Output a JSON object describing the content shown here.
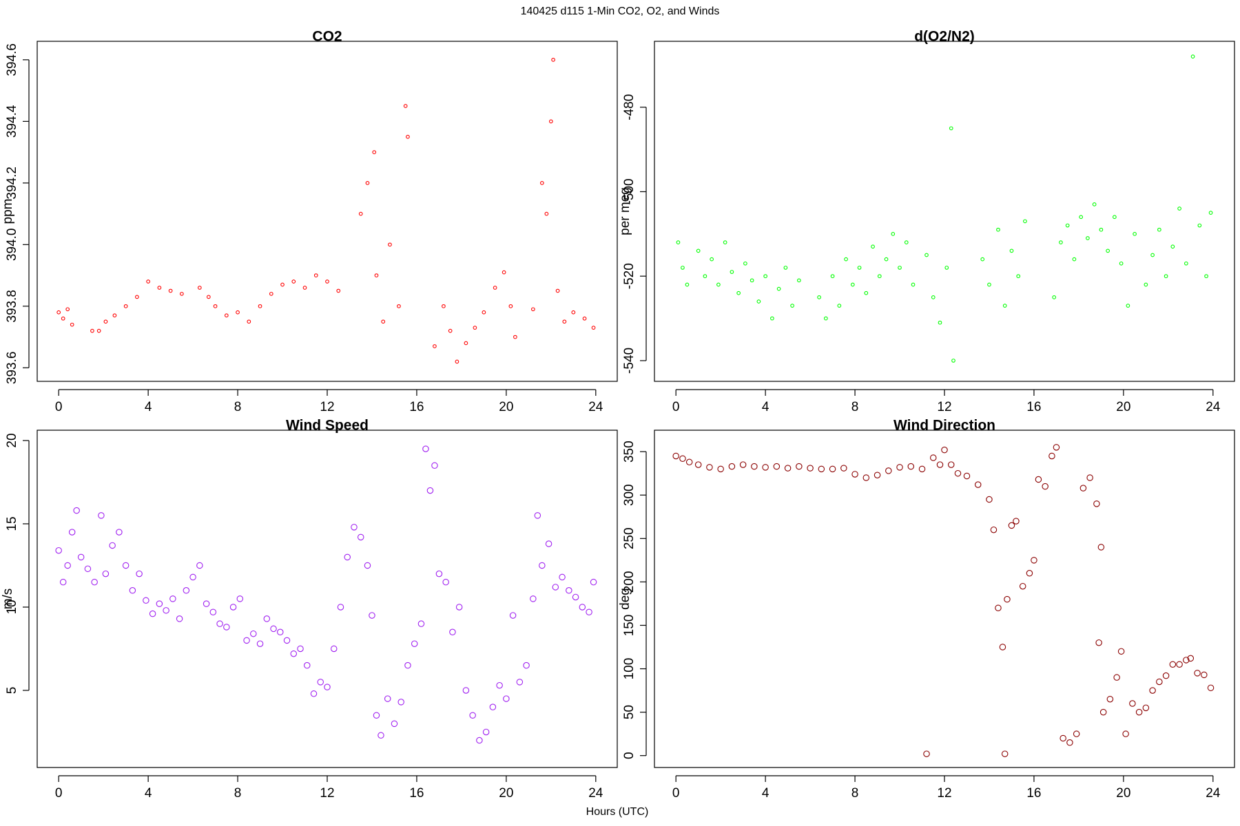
{
  "title": "140425   d115   1-Min CO2, O2, and Winds",
  "xlabel": "Hours (UTC)",
  "chart_data": [
    {
      "type": "scatter",
      "title": "CO2",
      "ylabel": "ppm",
      "color": "#ff0000",
      "xlim": [
        -0.96,
        24.96
      ],
      "xticks": [
        0,
        4,
        8,
        12,
        16,
        20,
        24
      ],
      "ylim": [
        393.556,
        394.66
      ],
      "yticks": [
        393.6,
        393.8,
        {
          "value": 394,
          "label": "394.0"
        },
        394.2,
        394.4,
        394.6
      ],
      "x": [
        0.0,
        0.2,
        0.4,
        0.6,
        1.5,
        1.8,
        2.1,
        2.5,
        3.0,
        3.5,
        4.0,
        4.5,
        5.0,
        5.5,
        6.3,
        6.7,
        7.0,
        7.5,
        8.0,
        8.5,
        9.0,
        9.5,
        10.0,
        10.5,
        11.0,
        11.5,
        12.0,
        12.5,
        13.5,
        13.8,
        14.1,
        14.2,
        14.5,
        14.8,
        15.2,
        15.5,
        15.6,
        16.8,
        17.2,
        17.5,
        17.8,
        18.2,
        18.6,
        19.0,
        19.5,
        19.9,
        20.2,
        20.4,
        21.2,
        21.6,
        21.8,
        22.0,
        22.1,
        22.3,
        22.6,
        23.0,
        23.5,
        23.9
      ],
      "values": [
        393.78,
        393.76,
        393.79,
        393.74,
        393.72,
        393.72,
        393.75,
        393.77,
        393.8,
        393.83,
        393.88,
        393.86,
        393.85,
        393.84,
        393.86,
        393.83,
        393.8,
        393.77,
        393.78,
        393.75,
        393.8,
        393.84,
        393.87,
        393.88,
        393.86,
        393.9,
        393.88,
        393.85,
        394.1,
        394.2,
        394.3,
        393.9,
        393.75,
        394.0,
        393.8,
        394.45,
        394.35,
        393.67,
        393.8,
        393.72,
        393.62,
        393.68,
        393.73,
        393.78,
        393.86,
        393.91,
        393.8,
        393.7,
        393.79,
        394.2,
        394.1,
        394.4,
        394.6,
        393.85,
        393.75,
        393.78,
        393.76,
        393.73
      ]
    },
    {
      "type": "scatter",
      "title": "d(O2/N2)",
      "ylabel": "per meg",
      "color": "#00ff00",
      "xlim": [
        -0.96,
        24.96
      ],
      "xticks": [
        0,
        4,
        8,
        12,
        16,
        20,
        24
      ],
      "ylim": [
        -544.9,
        -464.4
      ],
      "yticks": [
        -540,
        -520,
        -500,
        -480
      ],
      "x": [
        0.1,
        0.3,
        0.5,
        1.0,
        1.3,
        1.6,
        1.9,
        2.2,
        2.5,
        2.8,
        3.1,
        3.4,
        3.7,
        4.0,
        4.3,
        4.6,
        4.9,
        5.2,
        5.5,
        6.4,
        6.7,
        7.0,
        7.3,
        7.6,
        7.9,
        8.2,
        8.5,
        8.8,
        9.1,
        9.4,
        9.7,
        10.0,
        10.3,
        10.6,
        11.2,
        11.5,
        11.8,
        12.1,
        12.3,
        12.4,
        13.7,
        14.0,
        14.4,
        14.7,
        15.0,
        15.3,
        15.6,
        16.9,
        17.2,
        17.5,
        17.8,
        18.1,
        18.4,
        18.7,
        19.0,
        19.3,
        19.6,
        19.9,
        20.2,
        20.5,
        21.0,
        21.3,
        21.6,
        21.9,
        22.2,
        22.5,
        22.8,
        23.1,
        23.4,
        23.7,
        23.9
      ],
      "values": [
        -512,
        -518,
        -522,
        -514,
        -520,
        -516,
        -522,
        -512,
        -519,
        -524,
        -517,
        -521,
        -526,
        -520,
        -530,
        -523,
        -518,
        -527,
        -521,
        -525,
        -530,
        -520,
        -527,
        -516,
        -522,
        -518,
        -524,
        -513,
        -520,
        -516,
        -510,
        -518,
        -512,
        -522,
        -515,
        -525,
        -531,
        -518,
        -485,
        -540,
        -516,
        -522,
        -509,
        -527,
        -514,
        -520,
        -507,
        -525,
        -512,
        -508,
        -516,
        -506,
        -511,
        -503,
        -509,
        -514,
        -506,
        -517,
        -527,
        -510,
        -522,
        -515,
        -509,
        -520,
        -513,
        -504,
        -517,
        -468,
        -508,
        -520,
        -505
      ]
    },
    {
      "type": "scatter",
      "title": "Wind Speed",
      "ylabel": "m/s",
      "color": "#a020f0",
      "xlim": [
        -0.96,
        24.96
      ],
      "xticks": [
        0,
        4,
        8,
        12,
        16,
        20,
        24
      ],
      "ylim": [
        0.37,
        20.62
      ],
      "yticks": [
        5,
        10,
        15,
        20
      ],
      "x": [
        0.0,
        0.2,
        0.4,
        0.6,
        0.8,
        1.0,
        1.3,
        1.6,
        1.9,
        2.1,
        2.4,
        2.7,
        3.0,
        3.3,
        3.6,
        3.9,
        4.2,
        4.5,
        4.8,
        5.1,
        5.4,
        5.7,
        6.0,
        6.3,
        6.6,
        6.9,
        7.2,
        7.5,
        7.8,
        8.1,
        8.4,
        8.7,
        9.0,
        9.3,
        9.6,
        9.9,
        10.2,
        10.5,
        10.8,
        11.1,
        11.4,
        11.7,
        12.0,
        12.3,
        12.6,
        12.9,
        13.2,
        13.5,
        13.8,
        14.0,
        14.2,
        14.4,
        14.7,
        15.0,
        15.3,
        15.6,
        15.9,
        16.2,
        16.4,
        16.6,
        16.8,
        17.0,
        17.3,
        17.6,
        17.9,
        18.2,
        18.5,
        18.8,
        19.1,
        19.4,
        19.7,
        20.0,
        20.3,
        20.6,
        20.9,
        21.2,
        21.4,
        21.6,
        21.9,
        22.2,
        22.5,
        22.8,
        23.1,
        23.4,
        23.7,
        23.9
      ],
      "values": [
        13.4,
        11.5,
        12.5,
        14.5,
        15.8,
        13.0,
        12.3,
        11.5,
        15.5,
        12.0,
        13.7,
        14.5,
        12.5,
        11.0,
        12.0,
        10.4,
        9.6,
        10.2,
        9.8,
        10.5,
        9.3,
        11.0,
        11.8,
        12.5,
        10.2,
        9.7,
        9.0,
        8.8,
        10.0,
        10.5,
        8.0,
        8.4,
        7.8,
        9.3,
        8.7,
        8.5,
        8.0,
        7.2,
        7.5,
        6.5,
        4.8,
        5.5,
        5.2,
        7.5,
        10.0,
        13.0,
        14.8,
        14.2,
        12.5,
        9.5,
        3.5,
        2.3,
        4.5,
        3.0,
        4.3,
        6.5,
        7.8,
        9.0,
        19.5,
        17.0,
        18.5,
        12.0,
        11.5,
        8.5,
        10.0,
        5.0,
        3.5,
        2.0,
        2.5,
        4.0,
        5.3,
        4.5,
        9.5,
        5.5,
        6.5,
        10.5,
        15.5,
        12.5,
        13.8,
        11.2,
        11.8,
        11.0,
        10.6,
        10.0,
        9.7,
        11.5
      ]
    },
    {
      "type": "scatter",
      "title": "Wind Direction",
      "ylabel": "deg",
      "color": "#8b0000",
      "xlim": [
        -0.96,
        24.96
      ],
      "xticks": [
        0,
        4,
        8,
        12,
        16,
        20,
        24
      ],
      "ylim": [
        -13.7,
        374.7
      ],
      "yticks": [
        0,
        50,
        100,
        150,
        200,
        250,
        300,
        350
      ],
      "x": [
        0.0,
        0.3,
        0.6,
        1.0,
        1.5,
        2.0,
        2.5,
        3.0,
        3.5,
        4.0,
        4.5,
        5.0,
        5.5,
        6.0,
        6.5,
        7.0,
        7.5,
        8.0,
        8.5,
        9.0,
        9.5,
        10.0,
        10.5,
        11.0,
        11.2,
        11.5,
        11.8,
        12.0,
        12.3,
        12.6,
        13.0,
        13.5,
        14.0,
        14.2,
        14.4,
        14.6,
        14.7,
        14.8,
        15.0,
        15.2,
        15.5,
        15.8,
        16.0,
        16.2,
        16.5,
        16.8,
        17.0,
        17.3,
        17.6,
        17.9,
        18.2,
        18.5,
        18.8,
        18.9,
        19.0,
        19.1,
        19.4,
        19.7,
        19.9,
        20.1,
        20.4,
        20.7,
        21.0,
        21.3,
        21.6,
        21.9,
        22.2,
        22.5,
        22.8,
        23.0,
        23.3,
        23.6,
        23.9
      ],
      "values": [
        345,
        342,
        338,
        335,
        332,
        330,
        333,
        335,
        333,
        332,
        333,
        331,
        333,
        331,
        330,
        330,
        331,
        324,
        320,
        323,
        328,
        332,
        333,
        330,
        2,
        343,
        335,
        352,
        335,
        325,
        322,
        312,
        295,
        260,
        170,
        125,
        2,
        180,
        265,
        270,
        195,
        210,
        225,
        318,
        310,
        345,
        355,
        20,
        15,
        25,
        308,
        320,
        290,
        130,
        240,
        50,
        65,
        90,
        120,
        25,
        60,
        50,
        55,
        75,
        85,
        92,
        105,
        105,
        110,
        112,
        95,
        93,
        78
      ]
    }
  ]
}
